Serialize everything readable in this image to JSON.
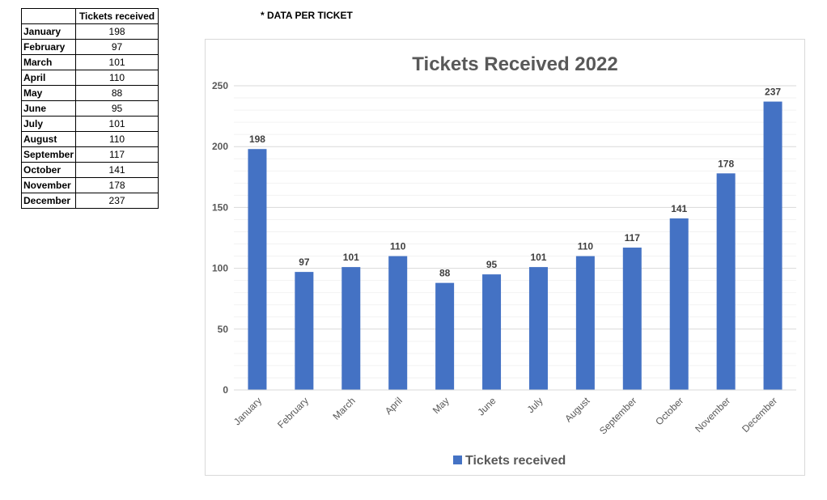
{
  "table": {
    "header": "Tickets received",
    "rows": [
      {
        "month": "January",
        "value": "198"
      },
      {
        "month": "February",
        "value": "97"
      },
      {
        "month": "March",
        "value": "101"
      },
      {
        "month": "April",
        "value": "110"
      },
      {
        "month": "May",
        "value": "88"
      },
      {
        "month": "June",
        "value": "95"
      },
      {
        "month": "July",
        "value": "101"
      },
      {
        "month": "August",
        "value": "110"
      },
      {
        "month": "September",
        "value": "117"
      },
      {
        "month": "October",
        "value": "141"
      },
      {
        "month": "November",
        "value": "178"
      },
      {
        "month": "December",
        "value": "237"
      }
    ]
  },
  "note": "* DATA PER TICKET",
  "colors": {
    "bar": "#4472C4",
    "title": "#595959",
    "axis_text": "#595959",
    "grid": "#d9d9d9"
  },
  "chart_data": {
    "type": "bar",
    "title": "Tickets Received 2022",
    "categories": [
      "January",
      "February",
      "March",
      "April",
      "May",
      "June",
      "July",
      "August",
      "September",
      "October",
      "November",
      "December"
    ],
    "series": [
      {
        "name": "Tickets received",
        "values": [
          198,
          97,
          101,
          110,
          88,
          95,
          101,
          110,
          117,
          141,
          178,
          237
        ]
      }
    ],
    "ylim": [
      0,
      250
    ],
    "yticks": [
      0,
      50,
      100,
      150,
      200,
      250
    ],
    "xlabel": "",
    "ylabel": "",
    "grid": true,
    "legend": "bottom",
    "data_labels": true
  }
}
